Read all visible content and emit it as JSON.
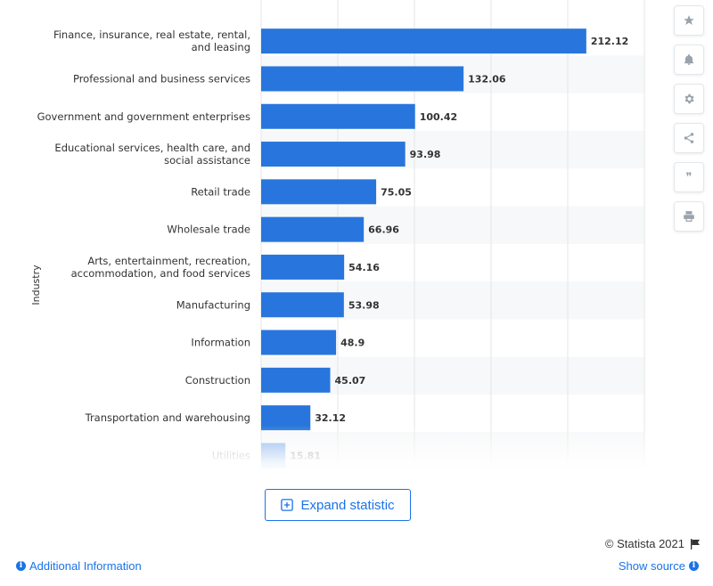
{
  "chart_data": {
    "type": "bar",
    "orientation": "horizontal",
    "ylabel": "Industry",
    "categories": [
      "Finance, insurance, real estate, rental, and leasing",
      "Professional and business services",
      "Government and government enterprises",
      "Educational services, health care, and social assistance",
      "Retail trade",
      "Wholesale trade",
      "Arts, entertainment, recreation, accommodation, and food services",
      "Manufacturing",
      "Information",
      "Construction",
      "Transportation and warehousing",
      "Utilities"
    ],
    "values": [
      212.12,
      132.06,
      100.42,
      93.98,
      75.05,
      66.96,
      54.16,
      53.98,
      48.9,
      45.07,
      32.12,
      15.81
    ],
    "xlim": [
      0,
      250
    ],
    "grid": true,
    "bar_color": "#2876dd"
  },
  "tools": [
    {
      "name": "star-icon"
    },
    {
      "name": "bell-icon"
    },
    {
      "name": "gear-icon"
    },
    {
      "name": "share-icon"
    },
    {
      "name": "quote-icon",
      "glyph": "❞"
    },
    {
      "name": "print-icon"
    }
  ],
  "expand_label": "Expand statistic",
  "copyright": "© Statista 2021",
  "additional_info": "Additional Information",
  "show_source": "Show source"
}
